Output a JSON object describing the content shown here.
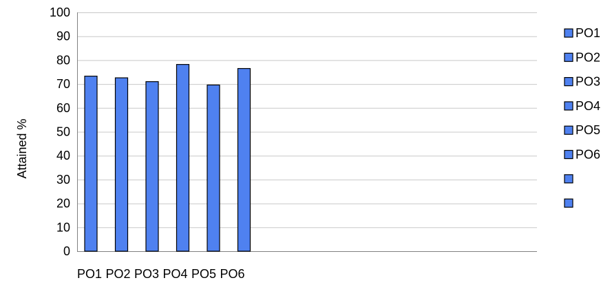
{
  "chart_data": {
    "type": "bar",
    "title": "",
    "xlabel": "",
    "ylabel": "Attained %",
    "ylim": [
      0,
      100
    ],
    "y_ticks": [
      0,
      10,
      20,
      30,
      40,
      50,
      60,
      70,
      80,
      90,
      100
    ],
    "grid": true,
    "legend_position": "right",
    "categories": [
      "PO1",
      "PO2",
      "PO3",
      "PO4",
      "PO5",
      "PO6"
    ],
    "values": [
      73.3,
      72.6,
      71.0,
      78.2,
      69.6,
      76.5
    ],
    "legend": [
      "PO1",
      "PO2",
      "PO3",
      "PO4",
      "PO5",
      "PO6",
      "",
      ""
    ],
    "bar_color": "#4f81f0",
    "bar_border_color": "#000000",
    "grid_color": "#c8c8c8",
    "axis_color": "#808080"
  }
}
